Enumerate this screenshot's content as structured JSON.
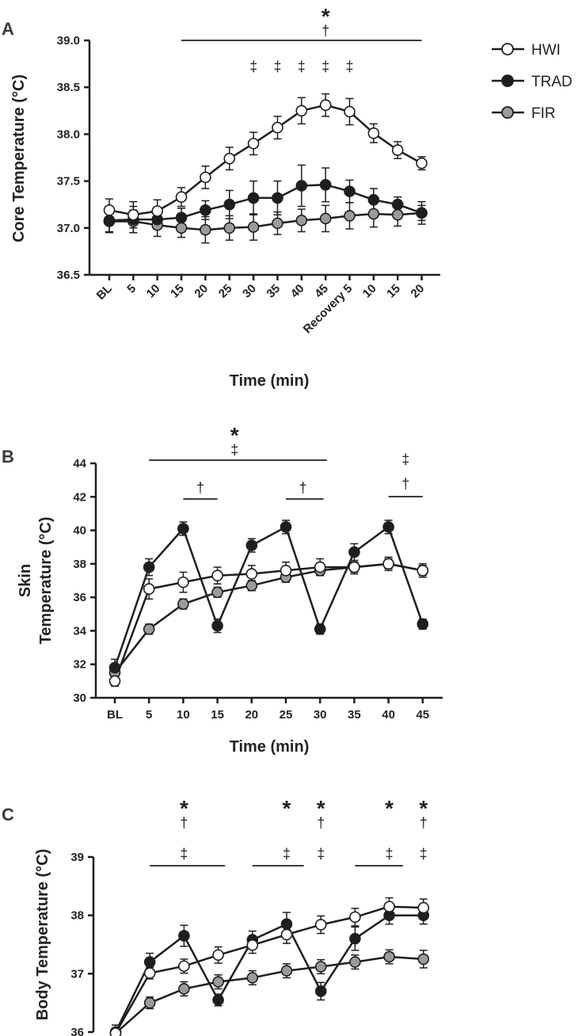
{
  "legend": [
    {
      "name": "HWI",
      "fill": "#ffffff"
    },
    {
      "name": "TRAD",
      "fill": "#1e1e1e"
    },
    {
      "name": "FIR",
      "fill": "#9b9b9b"
    }
  ],
  "chart_data": [
    {
      "panel": "A",
      "type": "line",
      "ylabel": "Core Temperature (°C)",
      "xlabel": "Time (min)",
      "ylim": [
        36.5,
        39.0
      ],
      "yticks": [
        "36.5",
        "37.0",
        "37.5",
        "38.0",
        "38.5",
        "39.0"
      ],
      "categories": [
        "BL",
        "5",
        "10",
        "15",
        "20",
        "25",
        "30",
        "35",
        "40",
        "45",
        "Recovery 5",
        "10",
        "15",
        "20"
      ],
      "series": [
        {
          "name": "HWI",
          "values": [
            37.19,
            37.14,
            37.18,
            37.33,
            37.54,
            37.74,
            37.9,
            38.07,
            38.25,
            38.31,
            38.24,
            38.01,
            37.83,
            37.69
          ],
          "err": [
            0.12,
            0.14,
            0.12,
            0.1,
            0.12,
            0.12,
            0.12,
            0.12,
            0.14,
            0.12,
            0.14,
            0.1,
            0.09,
            0.07
          ]
        },
        {
          "name": "TRAD",
          "values": [
            37.08,
            37.09,
            37.09,
            37.11,
            37.19,
            37.25,
            37.32,
            37.32,
            37.45,
            37.46,
            37.39,
            37.3,
            37.25,
            37.16
          ],
          "err": [
            0.12,
            0.14,
            0.1,
            0.1,
            0.1,
            0.15,
            0.18,
            0.18,
            0.22,
            0.18,
            0.12,
            0.12,
            0.08,
            0.08
          ]
        },
        {
          "name": "FIR",
          "values": [
            37.07,
            37.07,
            37.03,
            37.0,
            36.98,
            37.0,
            37.01,
            37.05,
            37.08,
            37.1,
            37.13,
            37.15,
            37.14,
            37.16
          ],
          "err": [
            0.12,
            0.12,
            0.12,
            0.1,
            0.14,
            0.13,
            0.14,
            0.12,
            0.12,
            0.14,
            0.14,
            0.14,
            0.12,
            0.12
          ]
        }
      ],
      "annotations": [
        {
          "text": "*",
          "style": "star",
          "i": 9,
          "ypx": 16
        },
        {
          "text": "†",
          "style": "sig",
          "i": 9,
          "ypx": 39
        },
        {
          "text": "‡",
          "style": "sig",
          "i": 6,
          "ypx": 84
        },
        {
          "text": "‡",
          "style": "sig",
          "i": 7,
          "ypx": 84
        },
        {
          "text": "‡",
          "style": "sig",
          "i": 8,
          "ypx": 84
        },
        {
          "text": "‡",
          "style": "sig",
          "i": 9,
          "ypx": 84
        },
        {
          "text": "‡",
          "style": "sig",
          "i": 10,
          "ypx": 84
        }
      ],
      "brackets": [
        {
          "from": 3,
          "to": 13,
          "ypx": 51
        }
      ]
    },
    {
      "panel": "B",
      "type": "line",
      "ylabel": "Skin Temperature (°C)",
      "ylabel_lines": [
        "Skin",
        "Temperature (°C)"
      ],
      "xlabel": "Time (min)",
      "ylim": [
        30,
        44
      ],
      "yticks": [
        "30",
        "32",
        "34",
        "36",
        "38",
        "40",
        "42",
        "44"
      ],
      "categories": [
        "BL",
        "5",
        "10",
        "15",
        "20",
        "25",
        "30",
        "35",
        "40",
        "45"
      ],
      "series": [
        {
          "name": "HWI",
          "values": [
            31.0,
            36.5,
            36.9,
            37.3,
            37.4,
            37.6,
            37.8,
            37.8,
            38.0,
            37.6
          ],
          "err": [
            0.3,
            0.6,
            0.6,
            0.5,
            0.5,
            0.5,
            0.5,
            0.4,
            0.4,
            0.4
          ]
        },
        {
          "name": "TRAD",
          "values": [
            31.8,
            37.8,
            40.1,
            34.3,
            39.1,
            40.2,
            34.1,
            38.7,
            40.2,
            34.4
          ],
          "err": [
            0.5,
            0.5,
            0.4,
            0.4,
            0.4,
            0.4,
            0.3,
            0.5,
            0.4,
            0.3
          ]
        },
        {
          "name": "FIR",
          "values": [
            31.5,
            34.1,
            35.6,
            36.3,
            36.7,
            37.2,
            37.6,
            37.8,
            38.0,
            37.6
          ],
          "err": [
            0.5,
            0.3,
            0.3,
            0.3,
            0.3,
            0.3,
            0.3,
            0.3,
            0.3,
            0.3
          ]
        }
      ],
      "annotations": [
        {
          "text": "*",
          "style": "star",
          "i": 3.5,
          "ypx": 545
        },
        {
          "text": "‡",
          "style": "sig",
          "i": 3.5,
          "ypx": 568
        },
        {
          "text": "†",
          "style": "sig",
          "i": 2.5,
          "ypx": 616
        },
        {
          "text": "†",
          "style": "sig",
          "i": 5.5,
          "ypx": 616
        },
        {
          "text": "‡",
          "style": "sig",
          "i": 8.5,
          "ypx": 580
        },
        {
          "text": "†",
          "style": "sig",
          "i": 8.5,
          "ypx": 611
        }
      ],
      "brackets": [
        {
          "from": 1,
          "to": 6.2,
          "ypx": 581
        },
        {
          "from": 2,
          "to": 3,
          "ypx": 630
        },
        {
          "from": 5,
          "to": 6.1,
          "ypx": 630
        },
        {
          "from": 8,
          "to": 9,
          "ypx": 627
        }
      ]
    },
    {
      "panel": "C",
      "type": "line",
      "ylabel": "Body Temperature (°C)",
      "ylim": [
        36,
        39
      ],
      "yticks": [
        "36",
        "37",
        "38",
        "39"
      ],
      "series": [
        {
          "name": "HWI",
          "values": [
            35.98,
            37.01,
            37.13,
            37.32,
            37.49,
            37.67,
            37.84,
            37.97,
            38.15,
            38.13
          ],
          "err": [
            0.08,
            0.1,
            0.12,
            0.14,
            0.14,
            0.15,
            0.15,
            0.15,
            0.15,
            0.15
          ]
        },
        {
          "name": "TRAD",
          "values": [
            36.0,
            37.2,
            37.65,
            36.55,
            37.58,
            37.85,
            36.7,
            37.6,
            38.0,
            38.0
          ],
          "err": [
            0.12,
            0.15,
            0.18,
            0.1,
            0.15,
            0.2,
            0.15,
            0.2,
            0.15,
            0.15
          ]
        },
        {
          "name": "FIR",
          "values": [
            35.98,
            36.5,
            36.74,
            36.86,
            36.93,
            37.05,
            37.12,
            37.2,
            37.29,
            37.25
          ],
          "err": [
            0.08,
            0.1,
            0.12,
            0.12,
            0.12,
            0.12,
            0.12,
            0.12,
            0.12,
            0.15
          ]
        }
      ],
      "annotations": [
        {
          "text": "*",
          "style": "star",
          "i": 2,
          "ypx": 1016
        },
        {
          "text": "†",
          "style": "sig",
          "i": 2,
          "ypx": 1039
        },
        {
          "text": "‡",
          "style": "sig",
          "i": 2,
          "ypx": 1078
        },
        {
          "text": "*",
          "style": "star",
          "i": 5,
          "ypx": 1016
        },
        {
          "text": "‡",
          "style": "sig",
          "i": 5,
          "ypx": 1078
        },
        {
          "text": "*",
          "style": "star",
          "i": 6,
          "ypx": 1016
        },
        {
          "text": "†",
          "style": "sig",
          "i": 6,
          "ypx": 1039
        },
        {
          "text": "‡",
          "style": "sig",
          "i": 6,
          "ypx": 1078
        },
        {
          "text": "*",
          "style": "star",
          "i": 8,
          "ypx": 1016
        },
        {
          "text": "‡",
          "style": "sig",
          "i": 8,
          "ypx": 1078
        },
        {
          "text": "*",
          "style": "star",
          "i": 9,
          "ypx": 1016
        },
        {
          "text": "†",
          "style": "sig",
          "i": 9,
          "ypx": 1039
        },
        {
          "text": "‡",
          "style": "sig",
          "i": 9,
          "ypx": 1078
        }
      ],
      "brackets": [
        {
          "from": 1,
          "to": 3.2,
          "ypx": 1093
        },
        {
          "from": 4,
          "to": 5.5,
          "ypx": 1093
        },
        {
          "from": 7,
          "to": 8.4,
          "ypx": 1093
        }
      ]
    }
  ]
}
